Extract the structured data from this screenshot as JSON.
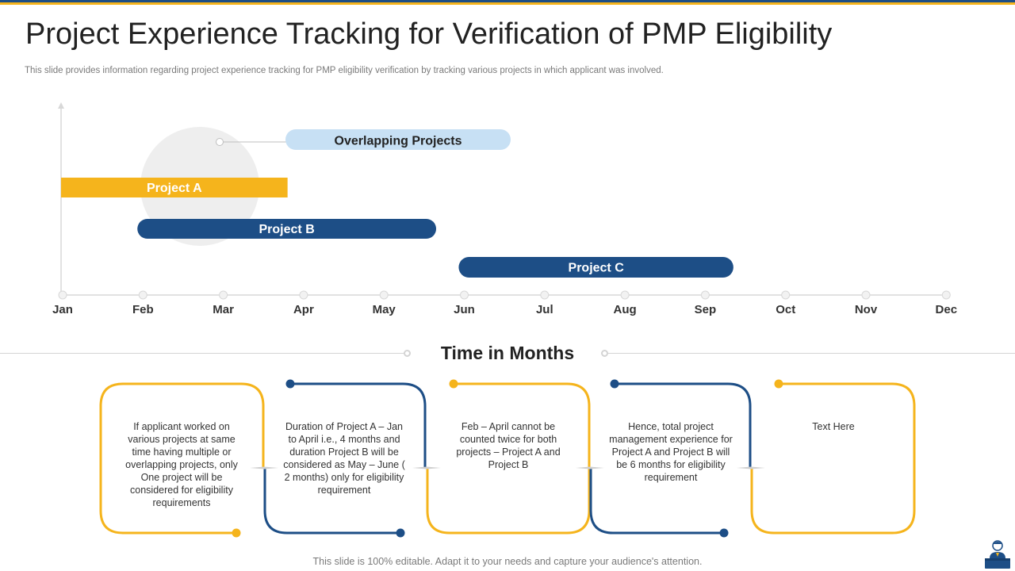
{
  "title": "Project Experience Tracking for Verification of PMP Eligibility",
  "subtitle": "This slide provides information regarding project experience tracking for PMP  eligibility verification by tracking various projects in which applicant was involved.",
  "timeline": {
    "callout": "Overlapping Projects",
    "months": [
      "Jan",
      "Feb",
      "Mar",
      "Apr",
      "May",
      "Jun",
      "Jul",
      "Aug",
      "Sep",
      "Oct",
      "Nov",
      "Dec"
    ],
    "axis_title": "Time in Months",
    "projects": [
      {
        "name": "Project A",
        "start": 0,
        "end": 2.8,
        "color": "#f5b41c",
        "shape": "flat"
      },
      {
        "name": "Project B",
        "start": 0.95,
        "end": 4.65,
        "color": "#1d4e86",
        "shape": "rounded"
      },
      {
        "name": "Project C",
        "start": 4.95,
        "end": 8.35,
        "color": "#1d4e86",
        "shape": "rounded"
      }
    ],
    "colors": {
      "gold": "#f5b41c",
      "blue": "#1d4e86",
      "callout_bg": "#c7e0f4",
      "highlight_circle": "#eeeeee"
    }
  },
  "cards": [
    {
      "text": "If applicant worked on various  projects at same time having multiple or overlapping  projects, only One project will be considered for eligibility requirements",
      "color": "#f5b41c"
    },
    {
      "text": "Duration  of Project A – Jan  to April i.e., 4 months and duration Project B will be considered as May – June ( 2 months) only for eligibility requirement",
      "color": "#1d4e86"
    },
    {
      "text": "Feb – April cannot be counted twice for both projects – Project A and Project B",
      "color": "#f5b41c"
    },
    {
      "text": "Hence, total project management  experience for Project A and Project B will be 6 months for eligibility requirement",
      "color": "#1d4e86"
    },
    {
      "text": "Text Here",
      "color": "#f5b41c"
    }
  ],
  "footer": "This slide is 100% editable. Adapt it to your needs and capture your audience's attention.",
  "logo_icon": "presenter-at-podium-icon"
}
